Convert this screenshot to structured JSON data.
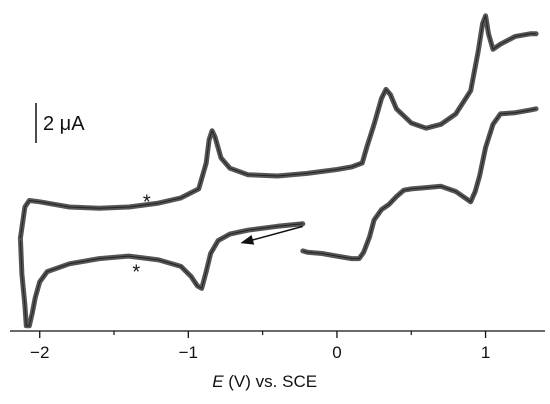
{
  "chart_data": {
    "type": "line",
    "title": "",
    "xlabel": "E (V) vs. SCE",
    "xlabel_italic_part": "E",
    "xlabel_rest": " (V) vs. SCE",
    "ylabel": "",
    "xlim": [
      -2.2,
      1.4
    ],
    "ylim": [
      -4.5,
      8.0
    ],
    "x_ticks": [
      -2,
      -1,
      0,
      1
    ],
    "x_tick_labels": [
      "−2",
      "−1",
      "0",
      "1"
    ],
    "grid": false,
    "scale_bar": {
      "label": "2 μA",
      "value_uA": 2
    },
    "annotations": [
      {
        "text": "*",
        "x": -1.28,
        "y": 0.55
      },
      {
        "text": "*",
        "x": -1.35,
        "y": -2.15
      }
    ],
    "arrow": {
      "from": [
        -0.23,
        -0.45
      ],
      "to": [
        -0.65,
        -1.1
      ],
      "direction": "left"
    },
    "series": [
      {
        "segment": "lower",
        "x": [
          -0.23,
          -0.4,
          -0.6,
          -0.72,
          -0.8,
          -0.85,
          -0.88,
          -0.91,
          -0.94,
          -0.98,
          -1.05,
          -1.2,
          -1.4,
          -1.6,
          -1.8,
          -1.95,
          -2.0,
          -2.03,
          -2.05,
          -2.07,
          -2.09,
          -2.1,
          -2.12,
          -2.13
        ],
        "y": [
          -0.35,
          -0.45,
          -0.6,
          -0.75,
          -1.0,
          -1.5,
          -2.2,
          -2.85,
          -2.75,
          -2.4,
          -2.0,
          -1.75,
          -1.6,
          -1.7,
          -1.9,
          -2.2,
          -2.6,
          -3.2,
          -3.8,
          -4.3,
          -4.3,
          -3.5,
          -2.3,
          -0.9
        ]
      },
      {
        "segment": "upper",
        "x": [
          -2.13,
          -2.1,
          -2.07,
          -2.0,
          -1.8,
          -1.6,
          -1.4,
          -1.2,
          -1.05,
          -0.93,
          -0.88,
          -0.86,
          -0.84,
          -0.82,
          -0.78,
          -0.72,
          -0.6,
          -0.4,
          -0.2,
          0.0,
          0.1,
          0.17,
          0.2,
          0.25,
          0.3,
          0.33,
          0.36,
          0.4,
          0.5,
          0.6,
          0.7,
          0.8,
          0.9,
          0.95,
          0.98,
          1.0,
          1.02,
          1.05,
          1.1,
          1.2,
          1.3,
          1.34
        ],
        "y": [
          -0.9,
          0.3,
          0.55,
          0.5,
          0.3,
          0.25,
          0.3,
          0.45,
          0.65,
          1.0,
          2.0,
          2.9,
          3.25,
          3.0,
          2.2,
          1.8,
          1.55,
          1.5,
          1.6,
          1.75,
          1.85,
          2.0,
          2.6,
          3.5,
          4.5,
          4.85,
          4.65,
          4.1,
          3.55,
          3.35,
          3.5,
          3.9,
          4.8,
          6.3,
          7.4,
          7.7,
          7.0,
          6.4,
          6.6,
          6.9,
          7.0,
          7.0
        ]
      },
      {
        "segment": "return",
        "x": [
          1.34,
          1.3,
          1.2,
          1.1,
          1.05,
          1.0,
          0.96,
          0.93,
          0.9,
          0.8,
          0.7,
          0.6,
          0.5,
          0.45,
          0.4,
          0.35,
          0.3,
          0.25,
          0.22,
          0.18,
          0.15,
          0.1,
          0.0,
          -0.1,
          -0.2,
          -0.23
        ],
        "y": [
          4.1,
          4.05,
          3.95,
          3.9,
          3.5,
          2.6,
          1.5,
          0.9,
          0.5,
          0.9,
          1.1,
          1.05,
          1.0,
          0.95,
          0.7,
          0.4,
          0.2,
          -0.2,
          -0.85,
          -1.45,
          -1.7,
          -1.7,
          -1.6,
          -1.5,
          -1.45,
          -1.4
        ]
      }
    ]
  }
}
